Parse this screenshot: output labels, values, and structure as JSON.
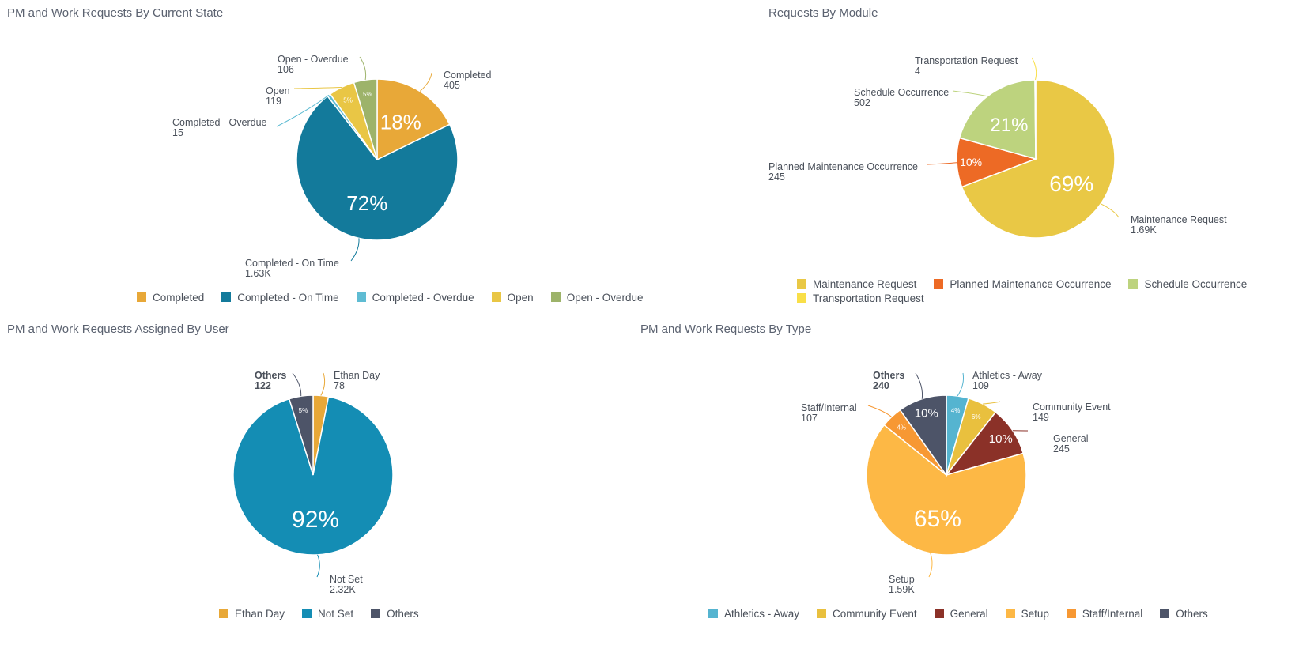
{
  "chart_data": [
    {
      "type": "pie",
      "title": "PM and Work Requests By Current State",
      "slices": [
        {
          "name": "Completed",
          "value": 405,
          "label": "405",
          "pct": "18%",
          "color": "#e8a838"
        },
        {
          "name": "Completed - On Time",
          "value": 1630,
          "label": "1.63K",
          "pct": "72%",
          "color": "#137a9b"
        },
        {
          "name": "Completed - Overdue",
          "value": 15,
          "label": "15",
          "pct": "",
          "color": "#5fbcd3"
        },
        {
          "name": "Open",
          "value": 119,
          "label": "119",
          "pct": "5%",
          "color": "#e9c645"
        },
        {
          "name": "Open - Overdue",
          "value": 106,
          "label": "106",
          "pct": "5%",
          "color": "#9db36a"
        }
      ],
      "legend": [
        "Completed",
        "Completed - On Time",
        "Completed - Overdue",
        "Open",
        "Open - Overdue"
      ]
    },
    {
      "type": "pie",
      "title": "Requests By Module",
      "slices": [
        {
          "name": "Maintenance Request",
          "value": 1690,
          "label": "1.69K",
          "pct": "69%",
          "color": "#e9c845"
        },
        {
          "name": "Planned Maintenance Occurrence",
          "value": 245,
          "label": "245",
          "pct": "10%",
          "color": "#ed6a25"
        },
        {
          "name": "Schedule Occurrence",
          "value": 502,
          "label": "502",
          "pct": "21%",
          "color": "#bdd37e"
        },
        {
          "name": "Transportation Request",
          "value": 4,
          "label": "4",
          "pct": "",
          "color": "#f9df48"
        }
      ],
      "legend": [
        "Maintenance Request",
        "Planned Maintenance Occurrence",
        "Schedule Occurrence",
        "Transportation Request"
      ]
    },
    {
      "type": "pie",
      "title": "PM and Work Requests Assigned By User",
      "slices": [
        {
          "name": "Ethan Day",
          "value": 78,
          "label": "78",
          "pct": "",
          "color": "#e8a838"
        },
        {
          "name": "Not Set",
          "value": 2320,
          "label": "2.32K",
          "pct": "92%",
          "color": "#148db4"
        },
        {
          "name": "Others",
          "value": 122,
          "label": "122",
          "pct": "5%",
          "color": "#4d5468",
          "bold": true
        }
      ],
      "legend": [
        "Ethan Day",
        "Not Set",
        "Others"
      ]
    },
    {
      "type": "pie",
      "title": "PM and Work Requests By Type",
      "slices": [
        {
          "name": "Athletics - Away",
          "value": 109,
          "label": "109",
          "pct": "4%",
          "color": "#55b4d0"
        },
        {
          "name": "Community Event",
          "value": 149,
          "label": "149",
          "pct": "6%",
          "color": "#e9c03e"
        },
        {
          "name": "General",
          "value": 245,
          "label": "245",
          "pct": "10%",
          "color": "#8b3128"
        },
        {
          "name": "Setup",
          "value": 1590,
          "label": "1.59K",
          "pct": "65%",
          "color": "#fdb845"
        },
        {
          "name": "Staff/Internal",
          "value": 107,
          "label": "107",
          "pct": "4%",
          "color": "#f79833"
        },
        {
          "name": "Others",
          "value": 240,
          "label": "240",
          "pct": "10%",
          "color": "#4d5468",
          "bold": true
        }
      ],
      "legend": [
        "Athletics - Away",
        "Community Event",
        "General",
        "Setup",
        "Staff/Internal",
        "Others"
      ]
    }
  ]
}
